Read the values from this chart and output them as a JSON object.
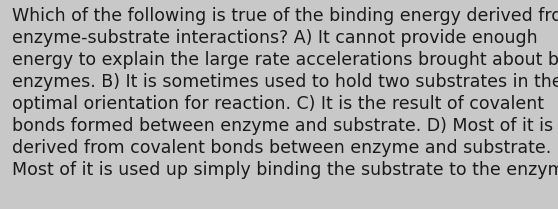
{
  "lines": [
    "Which of the following is true of the binding energy derived from",
    "enzyme-substrate interactions? A) It cannot provide enough",
    "energy to explain the large rate accelerations brought about by",
    "enzymes. B) It is sometimes used to hold two substrates in the",
    "optimal orientation for reaction. C) It is the result of covalent",
    "bonds formed between enzyme and substrate. D) Most of it is",
    "derived from covalent bonds between enzyme and substrate. E)",
    "Most of it is used up simply binding the substrate to the enzyme."
  ],
  "background_color": "#c8c8c8",
  "text_color": "#1a1a1a",
  "font_size": 12.5,
  "font_family": "DejaVu Sans",
  "fig_width": 5.58,
  "fig_height": 2.09,
  "dpi": 100
}
